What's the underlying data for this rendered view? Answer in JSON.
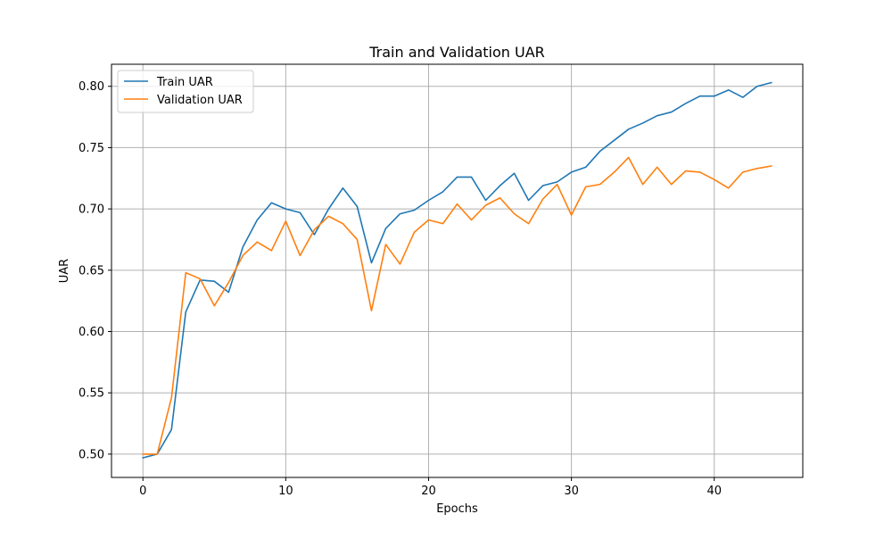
{
  "chart_data": {
    "type": "line",
    "title": "Train and Validation UAR",
    "xlabel": "Epochs",
    "ylabel": "UAR",
    "xlim": [
      -2.2,
      46.2
    ],
    "ylim": [
      0.481,
      0.818
    ],
    "xticks": [
      0,
      10,
      20,
      30,
      40
    ],
    "xtick_labels": [
      "0",
      "10",
      "20",
      "30",
      "40"
    ],
    "yticks": [
      0.5,
      0.55,
      0.6,
      0.65,
      0.7,
      0.75,
      0.8
    ],
    "ytick_labels": [
      "0.50",
      "0.55",
      "0.60",
      "0.65",
      "0.70",
      "0.75",
      "0.80"
    ],
    "grid": true,
    "legend_position": "top-left",
    "x": [
      0,
      1,
      2,
      3,
      4,
      5,
      6,
      7,
      8,
      9,
      10,
      11,
      12,
      13,
      14,
      15,
      16,
      17,
      18,
      19,
      20,
      21,
      22,
      23,
      24,
      25,
      26,
      27,
      28,
      29,
      30,
      31,
      32,
      33,
      34,
      35,
      36,
      37,
      38,
      39,
      40,
      41,
      42,
      43,
      44
    ],
    "series": [
      {
        "name": "Train UAR",
        "color": "#1f77b4",
        "values": [
          0.497,
          0.5,
          0.52,
          0.616,
          0.642,
          0.641,
          0.632,
          0.669,
          0.691,
          0.705,
          0.7,
          0.697,
          0.679,
          0.7,
          0.717,
          0.702,
          0.656,
          0.684,
          0.696,
          0.699,
          0.707,
          0.714,
          0.726,
          0.726,
          0.707,
          0.719,
          0.729,
          0.707,
          0.719,
          0.722,
          0.73,
          0.734,
          0.747,
          0.756,
          0.765,
          0.77,
          0.776,
          0.779,
          0.786,
          0.792,
          0.792,
          0.797,
          0.791,
          0.8,
          0.803
        ]
      },
      {
        "name": "Validation UAR",
        "color": "#ff7f0e",
        "values": [
          0.5,
          0.5,
          0.546,
          0.648,
          0.643,
          0.621,
          0.64,
          0.662,
          0.673,
          0.666,
          0.69,
          0.662,
          0.683,
          0.694,
          0.688,
          0.675,
          0.617,
          0.671,
          0.655,
          0.681,
          0.691,
          0.688,
          0.704,
          0.691,
          0.703,
          0.709,
          0.696,
          0.688,
          0.708,
          0.72,
          0.695,
          0.718,
          0.72,
          0.73,
          0.742,
          0.72,
          0.734,
          0.72,
          0.731,
          0.73,
          0.724,
          0.717,
          0.73,
          0.733,
          0.735
        ]
      }
    ]
  }
}
